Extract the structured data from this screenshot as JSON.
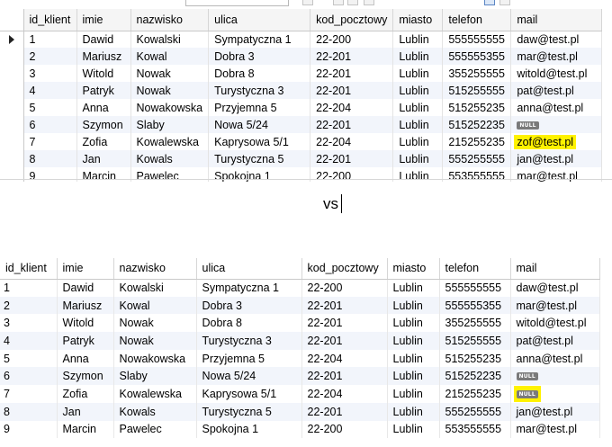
{
  "columns": [
    "id_klient",
    "imie",
    "nazwisko",
    "ulica",
    "kod_pocztowy",
    "miasto",
    "telefon",
    "mail"
  ],
  "top_grid": {
    "selected_row": 0,
    "highlighted_row": 6,
    "rows": [
      [
        "1",
        "Dawid",
        "Kowalski",
        "Sympatyczna 1",
        "22-200",
        "Lublin",
        "555555555",
        "daw@test.pl"
      ],
      [
        "2",
        "Mariusz",
        "Kowal",
        "Dobra 3",
        "22-201",
        "Lublin",
        "555555355",
        "mar@test.pl"
      ],
      [
        "3",
        "Witold",
        "Nowak",
        "Dobra 8",
        "22-201",
        "Lublin",
        "355255555",
        "witold@test.pl"
      ],
      [
        "4",
        "Patryk",
        "Nowak",
        "Turystyczna 3",
        "22-201",
        "Lublin",
        "515255555",
        "pat@test.pl"
      ],
      [
        "5",
        "Anna",
        "Nowakowska",
        "Przyjemna 5",
        "22-204",
        "Lublin",
        "515255235",
        "anna@test.pl"
      ],
      [
        "6",
        "Szymon",
        "Slaby",
        "Nowa 5/24",
        "22-201",
        "Lublin",
        "515252235",
        "NULL"
      ],
      [
        "7",
        "Zofia",
        "Kowalewska",
        "Kaprysowa 5/1",
        "22-204",
        "Lublin",
        "215255235",
        "zof@test.pl"
      ],
      [
        "8",
        "Jan",
        "Kowals",
        "Turystyczna 5",
        "22-201",
        "Lublin",
        "555255555",
        "jan@test.pl"
      ],
      [
        "9",
        "Marcin",
        "Pawelec",
        "Spokojna 1",
        "22-200",
        "Lublin",
        "553555555",
        "mar@test.pl"
      ]
    ]
  },
  "separator_text": "vs",
  "bottom_grid": {
    "highlighted_row": 6,
    "rows": [
      [
        "1",
        "Dawid",
        "Kowalski",
        "Sympatyczna 1",
        "22-200",
        "Lublin",
        "555555555",
        "daw@test.pl"
      ],
      [
        "2",
        "Mariusz",
        "Kowal",
        "Dobra 3",
        "22-201",
        "Lublin",
        "555555355",
        "mar@test.pl"
      ],
      [
        "3",
        "Witold",
        "Nowak",
        "Dobra 8",
        "22-201",
        "Lublin",
        "355255555",
        "witold@test.pl"
      ],
      [
        "4",
        "Patryk",
        "Nowak",
        "Turystyczna 3",
        "22-201",
        "Lublin",
        "515255555",
        "pat@test.pl"
      ],
      [
        "5",
        "Anna",
        "Nowakowska",
        "Przyjemna 5",
        "22-204",
        "Lublin",
        "515255235",
        "anna@test.pl"
      ],
      [
        "6",
        "Szymon",
        "Slaby",
        "Nowa 5/24",
        "22-201",
        "Lublin",
        "515252235",
        "NULL"
      ],
      [
        "7",
        "Zofia",
        "Kowalewska",
        "Kaprysowa 5/1",
        "22-204",
        "Lublin",
        "215255235",
        "NULL"
      ],
      [
        "8",
        "Jan",
        "Kowals",
        "Turystyczna 5",
        "22-201",
        "Lublin",
        "555255555",
        "jan@test.pl"
      ],
      [
        "9",
        "Marcin",
        "Pawelec",
        "Spokojna 1",
        "22-200",
        "Lublin",
        "553555555",
        "mar@test.pl"
      ]
    ]
  },
  "colors": {
    "highlight": "#fff200",
    "row_alt": "#f2f5fb",
    "null_badge": "#7a7a7a"
  },
  "icons": {
    "selected_row_marker": "caret-right-icon"
  }
}
